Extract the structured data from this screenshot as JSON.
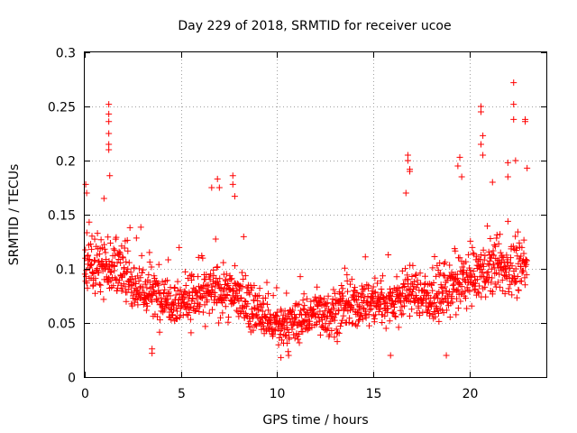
{
  "chart_data": {
    "type": "scatter",
    "title": "Day 229 of 2018, SRMTID for receiver ucoe",
    "xlabel": "GPS time / hours",
    "ylabel": "SRMTID / TECUs",
    "xlim": [
      0,
      24
    ],
    "ylim": [
      0,
      0.3
    ],
    "xticks": [
      0,
      5,
      10,
      15,
      20
    ],
    "xtick_labels": [
      "0",
      "5",
      "10",
      "15",
      "20"
    ],
    "yticks": [
      0,
      0.05,
      0.1,
      0.15,
      0.2,
      0.25,
      0.3
    ],
    "ytick_labels": [
      "0",
      "0.05",
      "0.1",
      "0.15",
      "0.2",
      "0.25",
      "0.3"
    ],
    "grid": true,
    "marker": "+",
    "color": "#ff0000",
    "x_range_of_data": [
      0,
      23
    ],
    "trend": [
      {
        "x": 0,
        "y": 0.1
      },
      {
        "x": 1,
        "y": 0.105
      },
      {
        "x": 2,
        "y": 0.095
      },
      {
        "x": 3,
        "y": 0.08
      },
      {
        "x": 4,
        "y": 0.075
      },
      {
        "x": 5,
        "y": 0.07
      },
      {
        "x": 6,
        "y": 0.075
      },
      {
        "x": 7,
        "y": 0.08
      },
      {
        "x": 8,
        "y": 0.075
      },
      {
        "x": 9,
        "y": 0.06
      },
      {
        "x": 10,
        "y": 0.045
      },
      {
        "x": 11,
        "y": 0.05
      },
      {
        "x": 12,
        "y": 0.06
      },
      {
        "x": 13,
        "y": 0.06
      },
      {
        "x": 14,
        "y": 0.065
      },
      {
        "x": 15,
        "y": 0.07
      },
      {
        "x": 16,
        "y": 0.07
      },
      {
        "x": 17,
        "y": 0.08
      },
      {
        "x": 18,
        "y": 0.07
      },
      {
        "x": 19,
        "y": 0.08
      },
      {
        "x": 20,
        "y": 0.09
      },
      {
        "x": 21,
        "y": 0.1
      },
      {
        "x": 22,
        "y": 0.1
      },
      {
        "x": 23,
        "y": 0.1
      }
    ],
    "spread": 0.022,
    "n_points": 1500,
    "outliers": [
      {
        "x": 0.05,
        "y": 0.178
      },
      {
        "x": 0.1,
        "y": 0.17
      },
      {
        "x": 1.25,
        "y": 0.252
      },
      {
        "x": 1.25,
        "y": 0.243
      },
      {
        "x": 1.25,
        "y": 0.236
      },
      {
        "x": 1.25,
        "y": 0.225
      },
      {
        "x": 1.25,
        "y": 0.215
      },
      {
        "x": 1.25,
        "y": 0.21
      },
      {
        "x": 1.3,
        "y": 0.186
      },
      {
        "x": 1.0,
        "y": 0.165
      },
      {
        "x": 6.6,
        "y": 0.175
      },
      {
        "x": 6.9,
        "y": 0.183
      },
      {
        "x": 7.0,
        "y": 0.175
      },
      {
        "x": 7.7,
        "y": 0.186
      },
      {
        "x": 7.7,
        "y": 0.178
      },
      {
        "x": 7.8,
        "y": 0.167
      },
      {
        "x": 16.8,
        "y": 0.205
      },
      {
        "x": 16.8,
        "y": 0.2
      },
      {
        "x": 16.9,
        "y": 0.192
      },
      {
        "x": 16.9,
        "y": 0.19
      },
      {
        "x": 16.7,
        "y": 0.17
      },
      {
        "x": 19.5,
        "y": 0.203
      },
      {
        "x": 19.4,
        "y": 0.195
      },
      {
        "x": 19.6,
        "y": 0.185
      },
      {
        "x": 20.6,
        "y": 0.25
      },
      {
        "x": 20.6,
        "y": 0.245
      },
      {
        "x": 20.7,
        "y": 0.223
      },
      {
        "x": 20.6,
        "y": 0.215
      },
      {
        "x": 20.7,
        "y": 0.205
      },
      {
        "x": 21.2,
        "y": 0.18
      },
      {
        "x": 22.3,
        "y": 0.272
      },
      {
        "x": 22.3,
        "y": 0.252
      },
      {
        "x": 22.3,
        "y": 0.238
      },
      {
        "x": 22.4,
        "y": 0.2
      },
      {
        "x": 22.0,
        "y": 0.198
      },
      {
        "x": 22.0,
        "y": 0.185
      },
      {
        "x": 22.9,
        "y": 0.238
      },
      {
        "x": 22.9,
        "y": 0.236
      },
      {
        "x": 23.0,
        "y": 0.193
      },
      {
        "x": 3.5,
        "y": 0.022
      },
      {
        "x": 3.5,
        "y": 0.026
      },
      {
        "x": 15.9,
        "y": 0.02
      },
      {
        "x": 18.8,
        "y": 0.02
      },
      {
        "x": 10.2,
        "y": 0.018
      },
      {
        "x": 10.6,
        "y": 0.02
      }
    ]
  }
}
